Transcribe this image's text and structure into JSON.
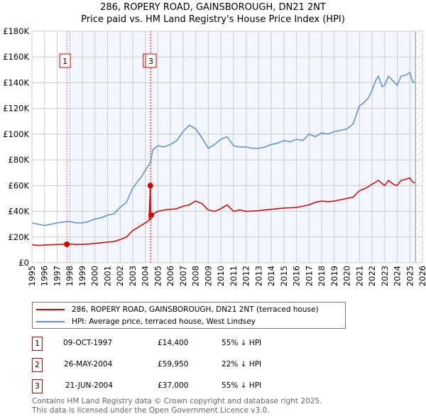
{
  "chart_data": {
    "type": "line",
    "title": "286, ROPERY ROAD, GAINSBOROUGH, DN21 2NT",
    "subtitle": "Price paid vs. HM Land Registry's House Price Index (HPI)",
    "xlim": [
      1995,
      2026
    ],
    "ylim": [
      0,
      180000
    ],
    "x_ticks": [
      "1995",
      "1996",
      "1997",
      "1998",
      "1999",
      "2000",
      "2001",
      "2002",
      "2003",
      "2004",
      "2005",
      "2006",
      "2007",
      "2008",
      "2009",
      "2010",
      "2011",
      "2012",
      "2013",
      "2014",
      "2015",
      "2016",
      "2017",
      "2018",
      "2019",
      "2020",
      "2021",
      "2022",
      "2023",
      "2024",
      "2025",
      "2026"
    ],
    "y_ticks": [
      {
        "v": 0,
        "label": "£0"
      },
      {
        "v": 20000,
        "label": "£20K"
      },
      {
        "v": 40000,
        "label": "£40K"
      },
      {
        "v": 60000,
        "label": "£60K"
      },
      {
        "v": 80000,
        "label": "£80K"
      },
      {
        "v": 100000,
        "label": "£100K"
      },
      {
        "v": 120000,
        "label": "£120K"
      },
      {
        "v": 140000,
        "label": "£140K"
      },
      {
        "v": 160000,
        "label": "£160K"
      },
      {
        "v": 180000,
        "label": "£180K"
      }
    ],
    "grid": true,
    "series": [
      {
        "name": "286, ROPERY ROAD, GAINSBOROUGH, DN21 2NT (terraced house)",
        "color": "#cc0000",
        "x": [
          1995,
          1995.5,
          1996,
          1996.5,
          1997,
          1997.77,
          1998,
          1998.5,
          1999,
          1999.5,
          2000,
          2001,
          2001.5,
          2002,
          2002.5,
          2003,
          2003.5,
          2004,
          2004.3,
          2004.4,
          2004.42,
          2004.47,
          2005,
          2005.5,
          2006,
          2006.5,
          2007,
          2007.5,
          2008,
          2008.5,
          2009,
          2009.5,
          2010,
          2010.5,
          2011,
          2011.5,
          2012,
          2013,
          2014,
          2015,
          2016,
          2016.5,
          2017,
          2017.5,
          2018,
          2018.5,
          2019,
          2019.5,
          2020,
          2020.5,
          2021,
          2021.5,
          2022,
          2022.5,
          2023,
          2023.3,
          2023.7,
          2024,
          2024.3,
          2024.7,
          2025,
          2025.2,
          2025.4
        ],
        "y": [
          14000,
          13500,
          13800,
          14000,
          14200,
          14400,
          14600,
          14200,
          14300,
          14500,
          15000,
          16000,
          16500,
          18000,
          20000,
          25000,
          28000,
          31000,
          33000,
          59950,
          33000,
          37000,
          40000,
          41000,
          41500,
          42000,
          44000,
          45000,
          48000,
          46000,
          41000,
          40000,
          42000,
          45000,
          40000,
          41000,
          40000,
          40500,
          41500,
          42500,
          43000,
          44000,
          45000,
          47000,
          48000,
          47500,
          48000,
          49000,
          50000,
          51000,
          56000,
          58000,
          61000,
          64000,
          60000,
          64000,
          61000,
          60000,
          64000,
          65000,
          66000,
          63000,
          62000
        ]
      },
      {
        "name": "HPI: Average price, terraced house, West Lindsey",
        "color": "#5b8fd0",
        "x": [
          1995,
          1995.5,
          1996,
          1996.5,
          1997,
          1997.77,
          1998,
          1998.5,
          1999,
          1999.5,
          2000,
          2000.5,
          2001,
          2001.5,
          2002,
          2002.5,
          2003,
          2003.3,
          2003.7,
          2004,
          2004.4,
          2004.6,
          2005,
          2005.5,
          2006,
          2006.5,
          2007,
          2007.5,
          2008,
          2008.5,
          2009,
          2009.5,
          2010,
          2010.5,
          2011,
          2011.5,
          2012,
          2012.5,
          2013,
          2013.5,
          2014,
          2014.5,
          2015,
          2015.5,
          2016,
          2016.5,
          2017,
          2017.5,
          2018,
          2018.5,
          2019,
          2019.5,
          2020,
          2020.5,
          2021,
          2021.3,
          2021.7,
          2022,
          2022.3,
          2022.5,
          2022.8,
          2023,
          2023.3,
          2023.6,
          2024,
          2024.3,
          2024.7,
          2025,
          2025.2,
          2025.4
        ],
        "y": [
          31000,
          30000,
          29000,
          30000,
          31000,
          32000,
          32000,
          31000,
          31000,
          32000,
          34000,
          35000,
          37000,
          38000,
          43000,
          47000,
          58000,
          62000,
          67000,
          72000,
          78000,
          88000,
          91000,
          90000,
          92000,
          95000,
          102000,
          107000,
          104000,
          97000,
          89000,
          92000,
          96000,
          98000,
          91000,
          90000,
          90000,
          89000,
          89000,
          90000,
          92000,
          93000,
          95000,
          94000,
          96000,
          95000,
          100000,
          98000,
          101000,
          100000,
          102000,
          103000,
          104000,
          108000,
          122000,
          124000,
          128000,
          134000,
          142000,
          145000,
          137000,
          138000,
          145000,
          142000,
          138000,
          145000,
          146000,
          148000,
          141000,
          140000
        ]
      }
    ],
    "annotations": [
      {
        "label": "1",
        "x": 1997.77
      },
      {
        "label": "2",
        "x": 2004.4
      },
      {
        "label": "3",
        "x": 2004.47
      }
    ],
    "sales": [
      {
        "x": 1997.77,
        "y": 14400
      },
      {
        "x": 2004.4,
        "y": 59950
      },
      {
        "x": 2004.47,
        "y": 37000
      }
    ],
    "forecast_start": 2025.45,
    "legend_position": "below"
  },
  "legend": {
    "items": [
      "286, ROPERY ROAD, GAINSBOROUGH, DN21 2NT (terraced house)",
      "HPI: Average price, terraced house, West Lindsey"
    ]
  },
  "transactions": [
    {
      "n": "1",
      "date": "09-OCT-1997",
      "price": "£14,400",
      "hpi": "55% ↓ HPI"
    },
    {
      "n": "2",
      "date": "26-MAY-2004",
      "price": "£59,950",
      "hpi": "22% ↓ HPI"
    },
    {
      "n": "3",
      "date": "21-JUN-2004",
      "price": "£37,000",
      "hpi": "55% ↓ HPI"
    }
  ],
  "footer": {
    "line1": "Contains HM Land Registry data © Crown copyright and database right 2025.",
    "line2": "This data is licensed under the Open Government Licence v3.0."
  }
}
